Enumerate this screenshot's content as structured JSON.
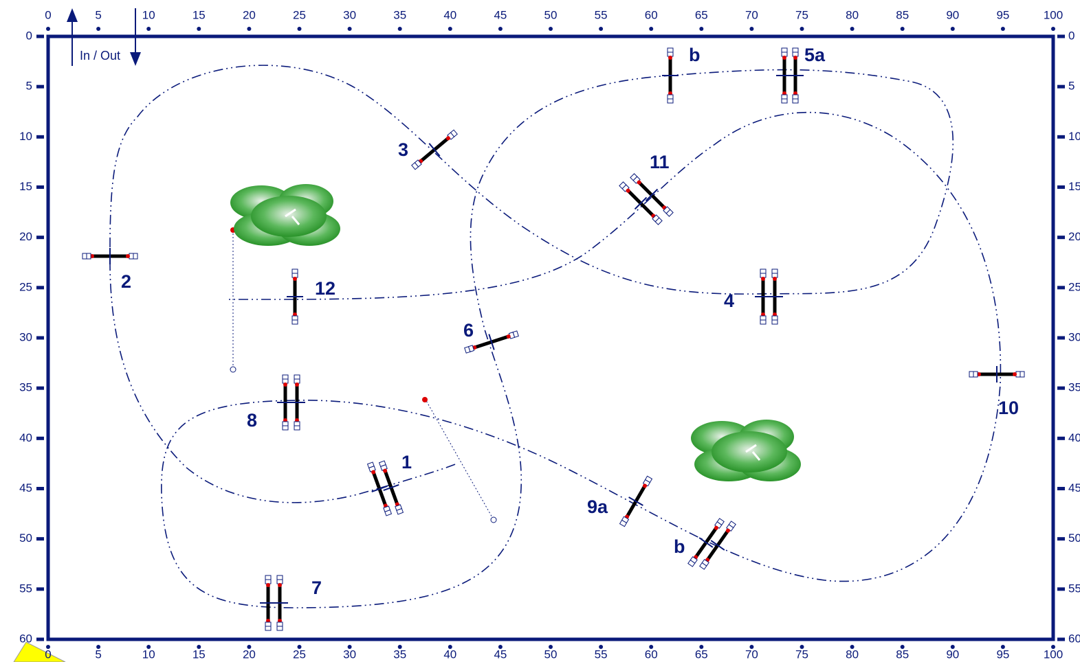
{
  "axes": {
    "xlim": [
      0,
      100
    ],
    "ylim": [
      0,
      60
    ],
    "xticks": [
      0,
      5,
      10,
      15,
      20,
      25,
      30,
      35,
      40,
      45,
      50,
      55,
      60,
      65,
      70,
      75,
      80,
      85,
      90,
      95,
      100
    ],
    "yticks": [
      0,
      5,
      10,
      15,
      20,
      25,
      30,
      35,
      40,
      45,
      50,
      55,
      60
    ]
  },
  "entry_label": "In / Out",
  "obstacles": [
    {
      "label": "b"
    },
    {
      "label": "5a"
    },
    {
      "label": "3"
    },
    {
      "label": "11"
    },
    {
      "label": "2"
    },
    {
      "label": "12"
    },
    {
      "label": "4"
    },
    {
      "label": "6"
    },
    {
      "label": "10"
    },
    {
      "label": "8"
    },
    {
      "label": "1"
    },
    {
      "label": "9a"
    },
    {
      "label": "b"
    },
    {
      "label": "7"
    }
  ]
}
